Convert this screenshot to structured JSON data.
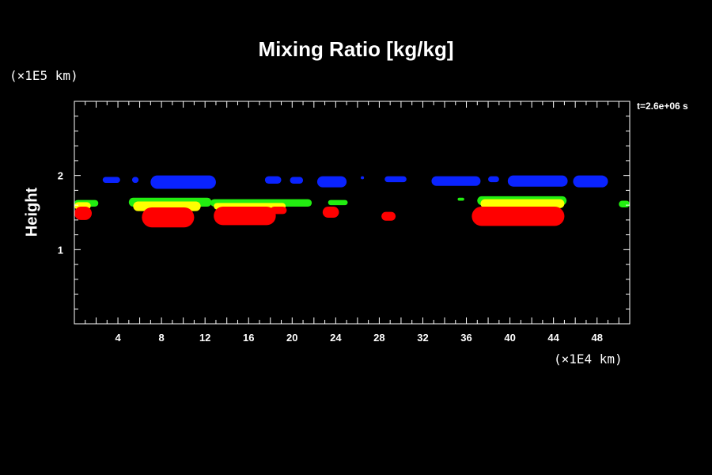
{
  "chart_data": {
    "type": "heatmap",
    "title": "Mixing Ratio [kg/kg]",
    "ylabel": "Height",
    "x_unit": "(×1E4 km)",
    "y_unit": "(×1E5 km)",
    "time_label": "t=2.6e+06 s",
    "xlim": [
      0,
      51
    ],
    "ylim": [
      0,
      3
    ],
    "x_ticks": [
      "4",
      "8",
      "12",
      "16",
      "20",
      "24",
      "28",
      "32",
      "36",
      "40",
      "44",
      "48"
    ],
    "x_tick_values": [
      4,
      8,
      12,
      16,
      20,
      24,
      28,
      32,
      36,
      40,
      44,
      48
    ],
    "y_ticks": [
      "1",
      "2"
    ],
    "y_tick_values": [
      1,
      2
    ],
    "grid": false,
    "colors": {
      "background": "#000000",
      "axes": "#ffffff",
      "blue": "#0a23ff",
      "green": "#22ee11",
      "yellow": "#ffff00",
      "red": "#ff0000"
    },
    "regions": [
      {
        "level": "blue",
        "blobs": [
          {
            "x1": 2.6,
            "x2": 4.2,
            "y1": 1.9,
            "y2": 1.98
          },
          {
            "x1": 5.3,
            "x2": 5.9,
            "y1": 1.9,
            "y2": 1.98
          },
          {
            "x1": 7.0,
            "x2": 13.0,
            "y1": 1.82,
            "y2": 2.0
          },
          {
            "x1": 17.5,
            "x2": 19.0,
            "y1": 1.89,
            "y2": 1.99
          },
          {
            "x1": 19.8,
            "x2": 21.0,
            "y1": 1.89,
            "y2": 1.98
          },
          {
            "x1": 22.3,
            "x2": 25.0,
            "y1": 1.84,
            "y2": 1.99
          },
          {
            "x1": 26.3,
            "x2": 26.6,
            "y1": 1.95,
            "y2": 1.99
          },
          {
            "x1": 28.5,
            "x2": 30.5,
            "y1": 1.91,
            "y2": 1.99
          },
          {
            "x1": 32.8,
            "x2": 37.3,
            "y1": 1.86,
            "y2": 1.99
          },
          {
            "x1": 38.0,
            "x2": 39.0,
            "y1": 1.91,
            "y2": 1.99
          },
          {
            "x1": 39.8,
            "x2": 45.3,
            "y1": 1.85,
            "y2": 2.0
          },
          {
            "x1": 45.8,
            "x2": 49.0,
            "y1": 1.84,
            "y2": 2.0
          }
        ]
      },
      {
        "level": "green",
        "blobs": [
          {
            "x1": 0,
            "x2": 2.2,
            "y1": 1.58,
            "y2": 1.67
          },
          {
            "x1": 5.0,
            "x2": 12.6,
            "y1": 1.58,
            "y2": 1.7
          },
          {
            "x1": 12.5,
            "x2": 21.8,
            "y1": 1.58,
            "y2": 1.68
          },
          {
            "x1": 23.3,
            "x2": 25.1,
            "y1": 1.6,
            "y2": 1.67
          },
          {
            "x1": 35.2,
            "x2": 35.8,
            "y1": 1.66,
            "y2": 1.7
          },
          {
            "x1": 37.0,
            "x2": 45.2,
            "y1": 1.6,
            "y2": 1.72
          },
          {
            "x1": 50.0,
            "x2": 51.0,
            "y1": 1.57,
            "y2": 1.66
          }
        ]
      },
      {
        "level": "yellow",
        "blobs": [
          {
            "x1": 0,
            "x2": 1.5,
            "y1": 1.54,
            "y2": 1.64
          },
          {
            "x1": 5.4,
            "x2": 11.6,
            "y1": 1.52,
            "y2": 1.65
          },
          {
            "x1": 12.8,
            "x2": 19.4,
            "y1": 1.54,
            "y2": 1.63
          },
          {
            "x1": 37.3,
            "x2": 45.0,
            "y1": 1.56,
            "y2": 1.68
          }
        ]
      },
      {
        "level": "red",
        "blobs": [
          {
            "x1": 0,
            "x2": 1.6,
            "y1": 1.4,
            "y2": 1.58
          },
          {
            "x1": 6.2,
            "x2": 11.0,
            "y1": 1.3,
            "y2": 1.57
          },
          {
            "x1": 12.8,
            "x2": 18.5,
            "y1": 1.33,
            "y2": 1.58
          },
          {
            "x1": 18.0,
            "x2": 19.5,
            "y1": 1.48,
            "y2": 1.58
          },
          {
            "x1": 22.8,
            "x2": 24.3,
            "y1": 1.43,
            "y2": 1.58
          },
          {
            "x1": 28.2,
            "x2": 29.5,
            "y1": 1.39,
            "y2": 1.51
          },
          {
            "x1": 36.5,
            "x2": 45.0,
            "y1": 1.32,
            "y2": 1.58
          }
        ]
      }
    ]
  }
}
